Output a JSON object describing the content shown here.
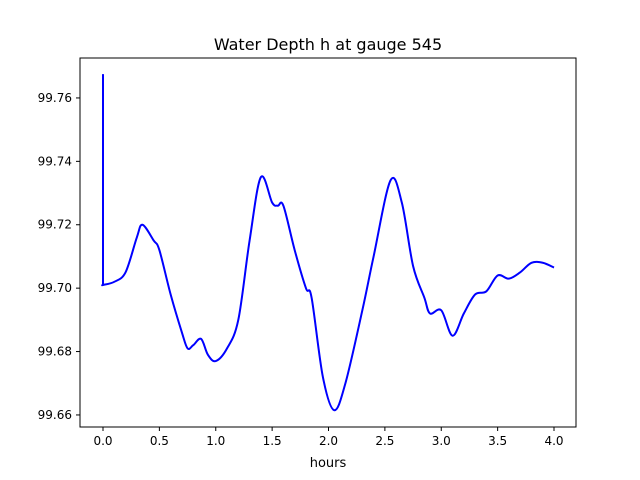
{
  "chart_data": {
    "type": "line",
    "title": "Water Depth h at gauge 545",
    "xlabel": "hours",
    "ylabel": "",
    "xlim": [
      -0.204,
      4.195
    ],
    "ylim": [
      99.6562,
      99.7726
    ],
    "xticks": [
      0.0,
      0.5,
      1.0,
      1.5,
      2.0,
      2.5,
      3.0,
      3.5,
      4.0
    ],
    "xtick_labels": [
      "0.0",
      "0.5",
      "1.0",
      "1.5",
      "2.0",
      "2.5",
      "3.0",
      "3.5",
      "4.0"
    ],
    "yticks": [
      99.66,
      99.68,
      99.7,
      99.72,
      99.74,
      99.76
    ],
    "ytick_labels": [
      "99.66",
      "99.68",
      "99.70",
      "99.72",
      "99.74",
      "99.76"
    ],
    "grid": false,
    "series": [
      {
        "name": "h",
        "color": "#0000ff",
        "x": [
          0.0,
          0.0,
          0.0,
          0.1,
          0.2,
          0.3,
          0.35,
          0.45,
          0.5,
          0.6,
          0.7,
          0.75,
          0.8,
          0.87,
          0.93,
          1.0,
          1.1,
          1.2,
          1.3,
          1.4,
          1.5,
          1.55,
          1.6,
          1.7,
          1.8,
          1.85,
          1.95,
          2.05,
          2.15,
          2.3,
          2.4,
          2.55,
          2.65,
          2.75,
          2.85,
          2.9,
          3.0,
          3.1,
          3.2,
          3.3,
          3.4,
          3.5,
          3.6,
          3.7,
          3.8,
          3.9,
          4.0
        ],
        "y": [
          99.7675,
          99.701,
          99.701,
          99.702,
          99.705,
          99.716,
          99.72,
          99.715,
          99.712,
          99.698,
          99.686,
          99.681,
          99.682,
          99.684,
          99.679,
          99.677,
          99.681,
          99.69,
          99.715,
          99.735,
          99.727,
          99.726,
          99.726,
          99.712,
          99.7,
          99.697,
          99.672,
          99.6615,
          99.67,
          99.693,
          99.71,
          99.734,
          99.727,
          99.707,
          99.697,
          99.692,
          99.693,
          99.685,
          99.692,
          99.698,
          99.699,
          99.704,
          99.703,
          99.705,
          99.708,
          99.708,
          99.7065
        ]
      }
    ]
  }
}
